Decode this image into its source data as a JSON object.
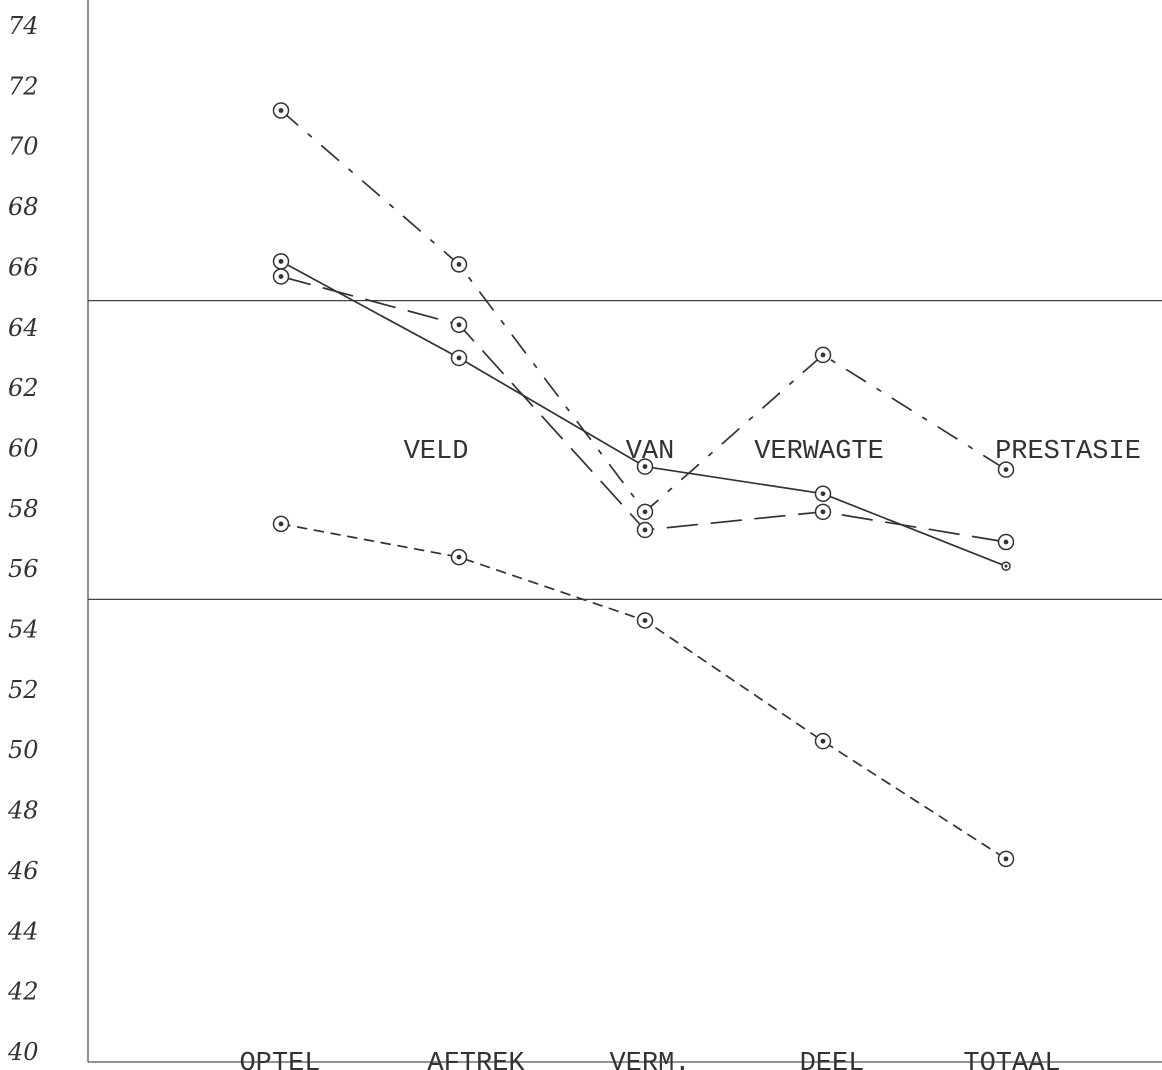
{
  "chart_data": {
    "type": "line",
    "categories": [
      "OPTEL",
      "AFTREK",
      "VERM.",
      "DEEL",
      "TOTAAL"
    ],
    "y_tick_labels": [
      "74",
      "72",
      "70",
      "68",
      "66",
      "64",
      "62",
      "60",
      "58",
      "56",
      "54",
      "52",
      "50",
      "48",
      "46",
      "44",
      "42",
      "40"
    ],
    "ylim": [
      40,
      74
    ],
    "reference_lines": [
      64.9,
      55
    ],
    "annotation": [
      "VELD",
      "VAN",
      "VERWAGTE",
      "PRESTASIE"
    ],
    "series": [
      {
        "style": "dash-dot",
        "values": [
          71.2,
          66.1,
          57.9,
          63.1,
          59.3
        ]
      },
      {
        "style": "solid",
        "values": [
          66.2,
          63.0,
          59.4,
          58.5,
          56.1
        ]
      },
      {
        "style": "long-dash",
        "values": [
          65.7,
          64.1,
          57.3,
          57.9,
          56.9
        ]
      },
      {
        "style": "short-dash",
        "values": [
          57.5,
          56.4,
          54.3,
          50.3,
          46.4
        ]
      }
    ],
    "grid": false,
    "colors": {
      "ink": "#333333",
      "lines": "#444444"
    }
  }
}
